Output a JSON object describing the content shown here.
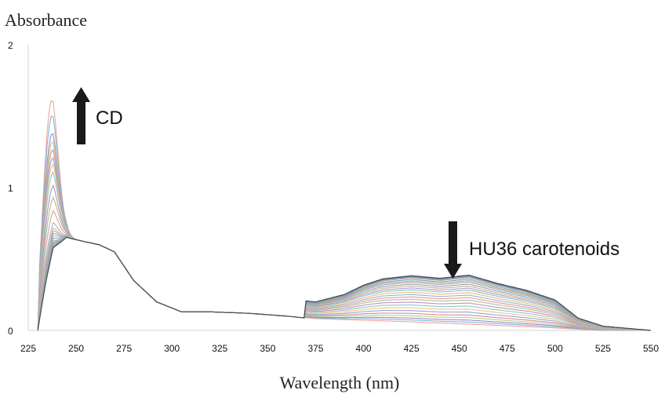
{
  "chart_data": {
    "type": "line",
    "title": "",
    "xlabel": "Wavelength (nm)",
    "ylabel": "Absorbance",
    "xlim": [
      225,
      550
    ],
    "ylim": [
      0,
      2
    ],
    "xticks": [
      225,
      250,
      275,
      300,
      325,
      350,
      375,
      400,
      425,
      450,
      475,
      500,
      525,
      550
    ],
    "yticks": [
      0,
      1,
      2
    ],
    "grid": false,
    "legend": "none",
    "annotations": [
      {
        "text": "CD",
        "arrow": "up",
        "x": 250,
        "y": 1.6
      },
      {
        "text": "HU36 carotenoids",
        "arrow": "down",
        "x": 450,
        "y": 0.6
      }
    ],
    "series_count": 24,
    "series_colors": [
      "#f2a59a",
      "#7fb7d9",
      "#a08ac4",
      "#b6cf8a",
      "#d98b8b",
      "#8fa8d6",
      "#f2c187",
      "#8cc9c2",
      "#c48cc4",
      "#a6c48a",
      "#e59a9a",
      "#9ab0dc",
      "#e0c07a",
      "#86c5b9",
      "#b59ad0",
      "#d0b08a",
      "#7fa8c8",
      "#c49a9a",
      "#9ab88a",
      "#8a9ab8",
      "#b0b0b0",
      "#6f8ea8",
      "#5e7a8a",
      "#444c55"
    ],
    "peak_uv_max": [
      1.75,
      1.64,
      1.51,
      1.45,
      1.39,
      1.33,
      1.28,
      1.22,
      1.12,
      1.03,
      0.93,
      0.84,
      0.8,
      0.78,
      0.76,
      0.74,
      0.72,
      0.7,
      0.69,
      0.68,
      0.67,
      0.66,
      0.65,
      0.65
    ],
    "carotenoid_scale": [
      0.02,
      0.06,
      0.1,
      0.15,
      0.2,
      0.26,
      0.32,
      0.38,
      0.44,
      0.5,
      0.55,
      0.6,
      0.65,
      0.7,
      0.74,
      0.78,
      0.82,
      0.86,
      0.89,
      0.92,
      0.95,
      0.97,
      0.99,
      1.0
    ],
    "carotenoid_peak": [
      [
        375,
        0.12
      ],
      [
        390,
        0.18
      ],
      [
        400,
        0.25
      ],
      [
        410,
        0.3
      ],
      [
        425,
        0.33
      ],
      [
        440,
        0.32
      ],
      [
        455,
        0.35
      ],
      [
        470,
        0.3
      ],
      [
        485,
        0.26
      ],
      [
        500,
        0.2
      ],
      [
        512,
        0.08
      ],
      [
        525,
        0.03
      ],
      [
        550,
        0.0
      ]
    ],
    "base_shoulder": [
      [
        230,
        0.0
      ],
      [
        234,
        0.3
      ],
      [
        238,
        0.55
      ],
      [
        245,
        0.65
      ],
      [
        255,
        0.62
      ],
      [
        262,
        0.6
      ],
      [
        270,
        0.55
      ],
      [
        280,
        0.35
      ],
      [
        292,
        0.2
      ],
      [
        305,
        0.13
      ],
      [
        320,
        0.13
      ],
      [
        340,
        0.12
      ],
      [
        360,
        0.1
      ],
      [
        375,
        0.08
      ]
    ]
  }
}
